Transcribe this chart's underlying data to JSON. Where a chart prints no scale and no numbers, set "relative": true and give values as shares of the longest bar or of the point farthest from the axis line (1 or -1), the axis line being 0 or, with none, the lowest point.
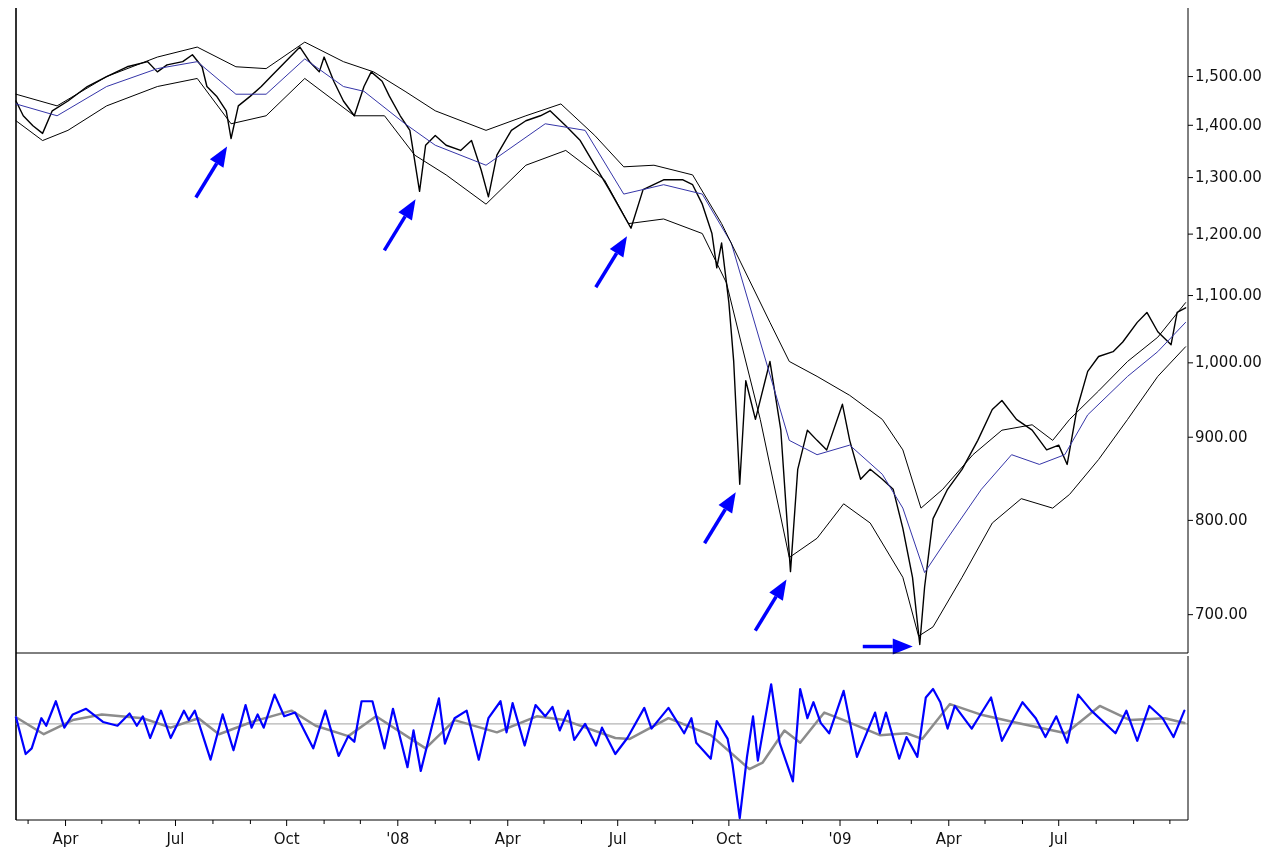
{
  "chart_data": [
    {
      "type": "line",
      "log": true,
      "tick_labels": "y",
      "xlim": [
        "2007-02-19",
        "2009-10-16"
      ],
      "ylim": [
        663,
        1653
      ],
      "yticks": [
        {
          "value": 700,
          "label": "700.00"
        },
        {
          "value": 800,
          "label": "800.00"
        },
        {
          "value": 900,
          "label": "900.00"
        },
        {
          "value": 1000,
          "label": "1,000.00"
        },
        {
          "value": 1100,
          "label": "1,100.00"
        },
        {
          "value": 1200,
          "label": "1,200.00"
        },
        {
          "value": 1300,
          "label": "1,300.00"
        },
        {
          "value": 1400,
          "label": "1,400.00"
        },
        {
          "value": 1500,
          "label": "1,500.00"
        }
      ],
      "series": [
        {
          "color": "#000000",
          "x": [
            "2007-02-19",
            "2007-02-25",
            "2007-03-05",
            "2007-03-13",
            "2007-03-21",
            "2007-04-03",
            "2007-04-19",
            "2007-05-05",
            "2007-05-22",
            "2007-06-08",
            "2007-06-16",
            "2007-06-24",
            "2007-07-07",
            "2007-07-15",
            "2007-07-23",
            "2007-07-27",
            "2007-08-04",
            "2007-08-12",
            "2007-08-16",
            "2007-08-22",
            "2007-09-01",
            "2007-09-10",
            "2007-09-18",
            "2007-09-30",
            "2007-10-12",
            "2007-10-20",
            "2007-10-28",
            "2007-11-01",
            "2007-11-09",
            "2007-11-17",
            "2007-11-26",
            "2007-12-04",
            "2007-12-10",
            "2007-12-19",
            "2007-12-25",
            "2008-01-03",
            "2008-01-11",
            "2008-01-19",
            "2008-01-24",
            "2008-02-01",
            "2008-02-10",
            "2008-02-22",
            "2008-03-02",
            "2008-03-10",
            "2008-03-16",
            "2008-03-23",
            "2008-04-04",
            "2008-04-16",
            "2008-04-28",
            "2008-05-06",
            "2008-05-19",
            "2008-05-31",
            "2008-06-12",
            "2008-06-24",
            "2008-07-12",
            "2008-07-22",
            "2008-08-08",
            "2008-08-24",
            "2008-09-01",
            "2008-09-09",
            "2008-09-17",
            "2008-09-21",
            "2008-09-25",
            "2008-10-01",
            "2008-10-05",
            "2008-10-10",
            "2008-10-15",
            "2008-10-23",
            "2008-10-31",
            "2008-11-04",
            "2008-11-13",
            "2008-11-21",
            "2008-11-27",
            "2008-12-05",
            "2008-12-13",
            "2008-12-21",
            "2009-01-03",
            "2009-01-09",
            "2009-01-18",
            "2009-01-26",
            "2009-02-05",
            "2009-02-14",
            "2009-02-22",
            "2009-03-02",
            "2009-03-08",
            "2009-03-12",
            "2009-03-19",
            "2009-03-31",
            "2009-04-12",
            "2009-04-25",
            "2009-05-07",
            "2009-05-15",
            "2009-05-27",
            "2009-06-09",
            "2009-06-21",
            "2009-07-01",
            "2009-07-08",
            "2009-07-16",
            "2009-07-25",
            "2009-08-03",
            "2009-08-15",
            "2009-08-23",
            "2009-09-04",
            "2009-09-12",
            "2009-09-21",
            "2009-10-02",
            "2009-10-07",
            "2009-10-14"
          ],
          "values": [
            1449,
            1419,
            1399,
            1384,
            1429,
            1449,
            1479,
            1500,
            1521,
            1532,
            1510,
            1525,
            1532,
            1547,
            1521,
            1479,
            1459,
            1429,
            1374,
            1439,
            1459,
            1479,
            1500,
            1532,
            1564,
            1532,
            1510,
            1542,
            1490,
            1449,
            1419,
            1479,
            1510,
            1490,
            1459,
            1419,
            1390,
            1275,
            1361,
            1380,
            1361,
            1351,
            1370,
            1314,
            1265,
            1342,
            1390,
            1409,
            1419,
            1429,
            1399,
            1370,
            1323,
            1278,
            1210,
            1278,
            1296,
            1296,
            1287,
            1252,
            1201,
            1144,
            1185,
            1089,
            1002,
            842,
            975,
            923,
            975,
            1002,
            909,
            744,
            860,
            909,
            896,
            884,
            943,
            896,
            848,
            860,
            848,
            836,
            791,
            738,
            671,
            728,
            802,
            836,
            860,
            896,
            936,
            948,
            923,
            909,
            884,
            890,
            866,
            936,
            988,
            1009,
            1016,
            1030,
            1059,
            1074,
            1045,
            1026,
            1074,
            1081
          ]
        },
        {
          "color": "#3535a8",
          "x": [
            "2007-02-19",
            "2007-03-25",
            "2007-05-05",
            "2007-06-16",
            "2007-07-19",
            "2007-08-20",
            "2007-09-14",
            "2007-10-16",
            "2007-11-17",
            "2007-12-04",
            "2008-01-07",
            "2008-02-01",
            "2008-03-14",
            "2008-05-02",
            "2008-06-04",
            "2008-07-06",
            "2008-08-08",
            "2008-09-09",
            "2008-10-03",
            "2008-10-27",
            "2008-11-20",
            "2008-12-13",
            "2009-01-09",
            "2009-02-05",
            "2009-02-22",
            "2009-03-12",
            "2009-03-31",
            "2009-04-28",
            "2009-05-23",
            "2009-06-15",
            "2009-07-06",
            "2009-07-25",
            "2009-08-27",
            "2009-09-21",
            "2009-10-14"
          ],
          "values": [
            1443,
            1419,
            1479,
            1517,
            1532,
            1463,
            1463,
            1538,
            1479,
            1469,
            1403,
            1361,
            1323,
            1403,
            1390,
            1270,
            1287,
            1270,
            1185,
            1030,
            896,
            878,
            890,
            854,
            814,
            743,
            780,
            836,
            878,
            866,
            878,
            929,
            981,
            1016,
            1059
          ]
        },
        {
          "color": "#000000",
          "x": [
            "2007-02-19",
            "2007-03-25",
            "2007-05-05",
            "2007-06-16",
            "2007-07-19",
            "2007-08-20",
            "2007-09-14",
            "2007-10-16",
            "2007-11-17",
            "2007-12-12",
            "2008-01-07",
            "2008-02-01",
            "2008-03-14",
            "2008-04-16",
            "2008-05-15",
            "2008-06-12",
            "2008-07-06",
            "2008-07-31",
            "2008-09-01",
            "2008-09-25",
            "2008-10-11",
            "2008-11-04",
            "2008-11-20",
            "2008-12-13",
            "2009-01-09",
            "2009-02-05",
            "2009-02-22",
            "2009-03-09",
            "2009-03-27",
            "2009-04-21",
            "2009-05-15",
            "2009-06-09",
            "2009-06-26",
            "2009-07-10",
            "2009-08-03",
            "2009-08-27",
            "2009-09-21",
            "2009-10-14"
          ],
          "values": [
            1463,
            1439,
            1500,
            1542,
            1564,
            1521,
            1517,
            1575,
            1532,
            1510,
            1469,
            1429,
            1390,
            1419,
            1443,
            1380,
            1320,
            1323,
            1305,
            1218,
            1152,
            1059,
            1002,
            981,
            955,
            923,
            884,
            814,
            836,
            878,
            909,
            916,
            896,
            923,
            961,
            1002,
            1037,
            1089
          ]
        },
        {
          "color": "#000000",
          "x": [
            "2007-02-19",
            "2007-03-13",
            "2007-04-03",
            "2007-05-05",
            "2007-06-16",
            "2007-07-19",
            "2007-08-16",
            "2007-09-14",
            "2007-10-16",
            "2007-11-26",
            "2007-12-21",
            "2008-01-15",
            "2008-02-10",
            "2008-03-14",
            "2008-04-16",
            "2008-05-19",
            "2008-06-20",
            "2008-07-10",
            "2008-08-08",
            "2008-09-09",
            "2008-09-29",
            "2008-10-11",
            "2008-10-27",
            "2008-11-20",
            "2008-12-13",
            "2009-01-04",
            "2009-01-26",
            "2009-02-22",
            "2009-03-07",
            "2009-03-19",
            "2009-04-12",
            "2009-05-07",
            "2009-05-31",
            "2009-06-26",
            "2009-07-10",
            "2009-08-03",
            "2009-08-27",
            "2009-09-21",
            "2009-10-14"
          ],
          "values": [
            1409,
            1370,
            1390,
            1439,
            1479,
            1496,
            1403,
            1419,
            1496,
            1419,
            1419,
            1342,
            1305,
            1252,
            1323,
            1351,
            1296,
            1218,
            1226,
            1201,
            1120,
            1030,
            923,
            759,
            780,
            819,
            797,
            738,
            679,
            688,
            738,
            797,
            825,
            814,
            830,
            872,
            923,
            981,
            1023
          ]
        }
      ]
    },
    {
      "type": "line",
      "relative": true,
      "tick_labels": "x",
      "xlim": [
        "2007-02-19",
        "2009-10-16"
      ],
      "xticks": [
        {
          "value": "2007-03-01",
          "label": null
        },
        {
          "value": "2007-04-01",
          "label": "Apr"
        },
        {
          "value": "2007-05-01",
          "label": null
        },
        {
          "value": "2007-06-01",
          "label": null
        },
        {
          "value": "2007-07-01",
          "label": "Jul"
        },
        {
          "value": "2007-08-01",
          "label": null
        },
        {
          "value": "2007-09-01",
          "label": null
        },
        {
          "value": "2007-10-01",
          "label": "Oct"
        },
        {
          "value": "2007-11-01",
          "label": null
        },
        {
          "value": "2007-12-01",
          "label": null
        },
        {
          "value": "2008-01-01",
          "label": "'08"
        },
        {
          "value": "2008-02-01",
          "label": null
        },
        {
          "value": "2008-03-01",
          "label": null
        },
        {
          "value": "2008-04-01",
          "label": "Apr"
        },
        {
          "value": "2008-05-01",
          "label": null
        },
        {
          "value": "2008-06-01",
          "label": null
        },
        {
          "value": "2008-07-01",
          "label": "Jul"
        },
        {
          "value": "2008-08-01",
          "label": null
        },
        {
          "value": "2008-09-01",
          "label": null
        },
        {
          "value": "2008-10-01",
          "label": "Oct"
        },
        {
          "value": "2008-11-01",
          "label": null
        },
        {
          "value": "2008-12-01",
          "label": null
        },
        {
          "value": "2009-01-01",
          "label": "'09"
        },
        {
          "value": "2009-02-01",
          "label": null
        },
        {
          "value": "2009-03-01",
          "label": null
        },
        {
          "value": "2009-04-01",
          "label": "Apr"
        },
        {
          "value": "2009-05-01",
          "label": null
        },
        {
          "value": "2009-06-01",
          "label": null
        },
        {
          "value": "2009-07-01",
          "label": "Jul"
        },
        {
          "value": "2009-08-01",
          "label": null
        },
        {
          "value": "2009-09-01",
          "label": null
        },
        {
          "value": "2009-10-01",
          "label": null
        }
      ],
      "ref_lines": [
        {
          "axis": "y",
          "value": 0,
          "color": "#b4b4b4"
        }
      ],
      "series": [
        {
          "color": "#8c8c8c",
          "x": [
            "2007-02-19",
            "2007-03-14",
            "2007-04-07",
            "2007-05-01",
            "2007-06-04",
            "2007-06-27",
            "2007-07-20",
            "2007-08-06",
            "2007-09-02",
            "2007-10-05",
            "2007-10-25",
            "2007-11-21",
            "2007-12-14",
            "2008-01-24",
            "2008-02-17",
            "2008-03-23",
            "2008-04-25",
            "2008-05-18",
            "2008-06-29",
            "2008-07-11",
            "2008-08-12",
            "2008-09-16",
            "2008-10-18",
            "2008-10-29",
            "2008-11-16",
            "2008-11-29",
            "2008-12-19",
            "2009-01-04",
            "2009-02-03",
            "2009-02-25",
            "2009-03-10",
            "2009-04-02",
            "2009-04-27",
            "2009-05-28",
            "2009-07-07",
            "2009-08-04",
            "2009-08-29",
            "2009-09-27",
            "2009-10-13"
          ],
          "values": [
            0.07,
            -0.11,
            0.04,
            0.1,
            0.06,
            -0.04,
            0.06,
            -0.11,
            0.02,
            0.14,
            -0.02,
            -0.13,
            0.08,
            -0.26,
            0.04,
            -0.09,
            0.08,
            0.04,
            -0.15,
            -0.16,
            0.06,
            -0.12,
            -0.48,
            -0.41,
            -0.07,
            -0.2,
            0.12,
            0.04,
            -0.12,
            -0.1,
            -0.16,
            0.21,
            0.1,
            0.01,
            -0.1,
            0.19,
            0.04,
            0.06,
            0.01
          ]
        },
        {
          "color": "#0000ff",
          "x": [
            "2007-02-19",
            "2007-02-27",
            "2007-03-04",
            "2007-03-12",
            "2007-03-16",
            "2007-03-24",
            "2007-03-31",
            "2007-04-07",
            "2007-04-18",
            "2007-05-02",
            "2007-05-14",
            "2007-05-24",
            "2007-05-30",
            "2007-06-04",
            "2007-06-10",
            "2007-06-19",
            "2007-06-27",
            "2007-07-08",
            "2007-07-12",
            "2007-07-17",
            "2007-07-30",
            "2007-08-09",
            "2007-08-18",
            "2007-08-28",
            "2007-09-02",
            "2007-09-07",
            "2007-09-12",
            "2007-09-21",
            "2007-09-29",
            "2007-10-08",
            "2007-10-23",
            "2007-11-02",
            "2007-11-13",
            "2007-11-21",
            "2007-11-26",
            "2007-12-02",
            "2007-12-11",
            "2007-12-21",
            "2007-12-28",
            "2008-01-09",
            "2008-01-14",
            "2008-01-20",
            "2008-02-04",
            "2008-02-09",
            "2008-02-17",
            "2008-02-27",
            "2008-03-08",
            "2008-03-16",
            "2008-03-26",
            "2008-03-31",
            "2008-04-05",
            "2008-04-15",
            "2008-04-24",
            "2008-05-02",
            "2008-05-08",
            "2008-05-14",
            "2008-05-21",
            "2008-05-26",
            "2008-06-04",
            "2008-06-13",
            "2008-06-18",
            "2008-06-29",
            "2008-07-09",
            "2008-07-23",
            "2008-07-29",
            "2008-08-12",
            "2008-08-25",
            "2008-08-31",
            "2008-09-04",
            "2008-09-16",
            "2008-09-21",
            "2008-09-30",
            "2008-10-04",
            "2008-10-10",
            "2008-10-16",
            "2008-10-21",
            "2008-10-25",
            "2008-11-05",
            "2008-11-12",
            "2008-11-23",
            "2008-11-29",
            "2008-12-05",
            "2008-12-10",
            "2008-12-16",
            "2008-12-23",
            "2009-01-04",
            "2009-01-15",
            "2009-01-30",
            "2009-02-03",
            "2009-02-08",
            "2009-02-19",
            "2009-02-25",
            "2009-03-06",
            "2009-03-13",
            "2009-03-19",
            "2009-03-25",
            "2009-03-31",
            "2009-04-06",
            "2009-04-20",
            "2009-05-06",
            "2009-05-15",
            "2009-06-01",
            "2009-06-12",
            "2009-06-20",
            "2009-06-29",
            "2009-07-08",
            "2009-07-17",
            "2009-07-28",
            "2009-08-17",
            "2009-08-26",
            "2009-09-04",
            "2009-09-14",
            "2009-09-25",
            "2009-10-04",
            "2009-10-13"
          ],
          "values": [
            0.07,
            -0.32,
            -0.26,
            0.06,
            -0.02,
            0.24,
            -0.04,
            0.1,
            0.16,
            0.02,
            -0.02,
            0.11,
            -0.02,
            0.08,
            -0.15,
            0.14,
            -0.15,
            0.14,
            0.04,
            0.14,
            -0.38,
            0.1,
            -0.28,
            0.2,
            -0.04,
            0.1,
            -0.04,
            0.31,
            0.08,
            0.12,
            -0.26,
            0.14,
            -0.34,
            -0.13,
            -0.19,
            0.24,
            0.24,
            -0.26,
            0.16,
            -0.46,
            -0.07,
            -0.5,
            0.27,
            -0.21,
            0.06,
            0.14,
            -0.38,
            0.06,
            0.24,
            -0.09,
            0.22,
            -0.23,
            0.2,
            0.08,
            0.18,
            -0.07,
            0.14,
            -0.17,
            0,
            -0.23,
            -0.04,
            -0.32,
            -0.15,
            0.17,
            -0.05,
            0.17,
            -0.1,
            0.06,
            -0.2,
            -0.37,
            0.03,
            -0.16,
            -0.43,
            -1,
            -0.35,
            0.08,
            -0.39,
            0.42,
            -0.2,
            -0.61,
            0.37,
            0.06,
            0.23,
            0.01,
            -0.1,
            0.35,
            -0.35,
            0.12,
            -0.1,
            0.12,
            -0.37,
            -0.14,
            -0.35,
            0.28,
            0.37,
            0.23,
            -0.05,
            0.19,
            -0.05,
            0.28,
            -0.18,
            0.23,
            0.06,
            -0.14,
            0.08,
            -0.2,
            0.31,
            0.14,
            -0.1,
            0.14,
            -0.18,
            0.19,
            0.06,
            -0.14,
            0.14
          ]
        }
      ]
    }
  ]
}
